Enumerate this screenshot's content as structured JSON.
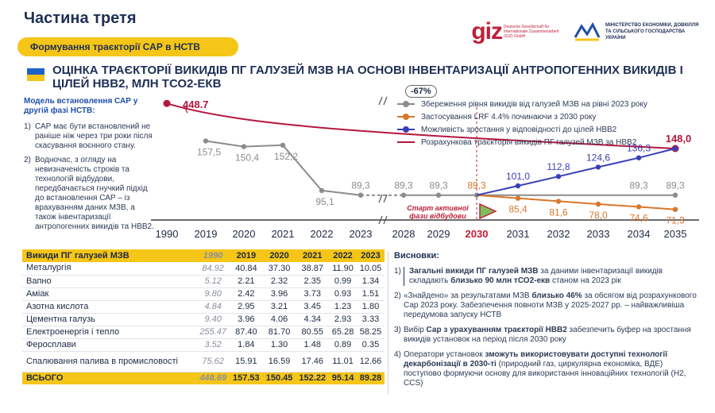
{
  "header": {
    "page_title": "Частина третя",
    "subtitle": "Формування траєкторії САР в НСТВ",
    "giz_logo_text": "giz",
    "giz_subtext": "Deutsche Gesellschaft für Internationale Zusammenarbeit (GIZ) GmbH",
    "ministry_text": "МІНІСТЕРСТВО ЕКОНОМІКИ, ДОВКІЛЛЯ ТА СІЛЬСЬКОГО ГОСПОДАРСТВА УКРАЇНИ",
    "heading": "ОЦІНКА ТРАЄКТОРІЇ ВИКИДІВ ПГ ГАЛУЗЕЙ МЗВ НА ОСНОВІ ІНВЕНТАРИЗАЦІЇ АНТРОПОГЕННИХ ВИКИДІВ І ЦІЛЕЙ НВВ2, МЛН ТСО2-ЕКВ"
  },
  "left_notes": {
    "heading": "Модель встановлення САР у другій фазі НСТВ:",
    "items": [
      {
        "num": "1)",
        "text": "САР має бути встановлений не раніше ніж через три роки після скасування воєнного стану."
      },
      {
        "num": "2)",
        "text": "Водночас, з огляду на невизначеність строків та технологій відбудови, передбачається гнучкий підхід до встановлення САР – із врахуванням даних МЗВ, а також інвентаризації антропогенних викидів та НВВ2."
      }
    ]
  },
  "chart_data": {
    "type": "line",
    "title": "ОЦІНКА ТРАЄКТОРІЇ ВИКИДІВ ПГ ГАЛУЗЕЙ МЗВ НА ОСНОВІ ІНВЕНТАРИЗАЦІЇ АНТРОПОГЕННИХ ВИКИДІВ І ЦІЛЕЙ НВВ2, МЛН ТСО2-ЕКВ",
    "categories": [
      "1990",
      "2019",
      "2020",
      "2021",
      "2022",
      "2023",
      "2028",
      "2029",
      "2030",
      "2031",
      "2032",
      "2033",
      "2034",
      "2035"
    ],
    "highlight_category": "2030",
    "reduction_label": "-67%",
    "start_label": "Старт активної фази відбудови",
    "series": [
      {
        "name": "Збереження рівня викидів від галузей МЗВ на рівні 2023 року",
        "color": "#8c8c8c",
        "values": [
          null,
          157.5,
          150.4,
          152.2,
          95.1,
          89.3,
          89.3,
          89.3,
          89.3,
          89.3,
          89.3,
          89.3,
          89.3,
          89.3
        ],
        "labels": [
          "",
          "157,5",
          "150,4",
          "152,2",
          "95,1",
          "89,3",
          "89,3",
          "89,3",
          "89,3",
          "",
          "",
          "",
          "89,3",
          "89,3"
        ]
      },
      {
        "name": "Застосування LRF 4.4% починаючи з 2030 року",
        "color": "#d9772b",
        "values": [
          null,
          null,
          null,
          null,
          null,
          null,
          null,
          null,
          89.3,
          85.4,
          81.6,
          78.0,
          74.6,
          71.3
        ],
        "labels": [
          "",
          "",
          "",
          "",
          "",
          "",
          "",
          "",
          "",
          "85,4",
          "81,6",
          "78,0",
          "74,6",
          "71,3"
        ]
      },
      {
        "name": "Можливість зростання у відповідності до цілей НВВ2",
        "color": "#3b3fb5",
        "values": [
          null,
          null,
          null,
          null,
          null,
          null,
          null,
          null,
          89.3,
          101.0,
          112.8,
          124.6,
          136.3,
          148.0
        ],
        "labels": [
          "",
          "",
          "",
          "",
          "",
          "",
          "",
          "",
          "",
          "101,0",
          "112,8",
          "124,6",
          "136,3",
          ""
        ]
      },
      {
        "name": "Розрахункова траєкторія викидів ПГ галузей МЗВ за НВВ2",
        "color": "#b5173e",
        "values": [
          448.7,
          null,
          null,
          null,
          null,
          null,
          null,
          null,
          null,
          null,
          null,
          null,
          null,
          148.0
        ],
        "labels": [
          "448.7",
          "",
          "",
          "",
          "",
          "",
          "",
          "",
          "",
          "",
          "",
          "",
          "",
          "148,0"
        ]
      }
    ],
    "ylabel": "млн тСО2-екв"
  },
  "table": {
    "headers": [
      "Викиди ПГ галузей МЗВ",
      "1990",
      "2019",
      "2020",
      "2021",
      "2022",
      "2023"
    ],
    "rows": [
      {
        "name": "Металургія",
        "values": [
          "84.92",
          "40.84",
          "37.30",
          "38.87",
          "11.90",
          "10.05"
        ]
      },
      {
        "name": "Вапно",
        "values": [
          "5.12",
          "2.21",
          "2.32",
          "2.35",
          "0.99",
          "1.34"
        ]
      },
      {
        "name": "Аміак",
        "values": [
          "9.80",
          "2.42",
          "3.96",
          "3.73",
          "0.93",
          "1.51"
        ]
      },
      {
        "name": "Азотна кислота",
        "values": [
          "4.84",
          "2.95",
          "3.21",
          "3.45",
          "1.23",
          "1.80"
        ]
      },
      {
        "name": "Цементна галузь",
        "values": [
          "9.40",
          "3.96",
          "4.06",
          "4.34",
          "2.93",
          "3.33"
        ]
      },
      {
        "name": "Електроенергія і тепло",
        "values": [
          "255.47",
          "87.40",
          "81.70",
          "80.55",
          "65.28",
          "58.25"
        ]
      },
      {
        "name": "Феросплави",
        "values": [
          "3.52",
          "1.84",
          "1.30",
          "1.48",
          "0.89",
          "0.35"
        ]
      },
      {
        "name": "Спалювання палива в промисловості",
        "values": [
          "75.62",
          "15.91",
          "16.59",
          "17.46",
          "11.01",
          "12.66"
        ]
      }
    ],
    "total": {
      "name": "ВСЬОГО",
      "values": [
        "448.69",
        "157.53",
        "150.45",
        "152.22",
        "95.14",
        "89.28"
      ]
    }
  },
  "conclusions": {
    "heading": "Висновки:",
    "items": [
      {
        "num": "1)",
        "html": "<b>Загальні викиди ПГ галузей МЗВ</b> за даними інвентаризації викидів складають <b>близько 90 млн тСО2-екв</b> станом на 2023 рік"
      },
      {
        "num": "2)",
        "html": "«Знайдено» за результатами МЗВ <b>близько 46%</b> за обсягом від розрахункового Сар 2023 року. Забезпечення повноти МЗВ у 2025-2027 рр. – найважливіша передумова запуску НСТВ"
      },
      {
        "num": "3)",
        "html": "Вибір <b>Сар з урахуванням траєкторії НВВ2</b> забезпечить буфер на зростання викидів установок на період після 2030 року"
      },
      {
        "num": "4)",
        "html": "Оператори установок <b>зможуть використовувати доступні технології декарбонізації в 2030-ті</b> (природний газ, циркулярна економіка, ВДЕ) поступово формуючи основу для використання інноваційних технологій (Н2, ССS)"
      }
    ]
  },
  "colors": {
    "accent_yellow": "#f5c518",
    "navy": "#1f2f55",
    "brand_red": "#c0203a"
  }
}
